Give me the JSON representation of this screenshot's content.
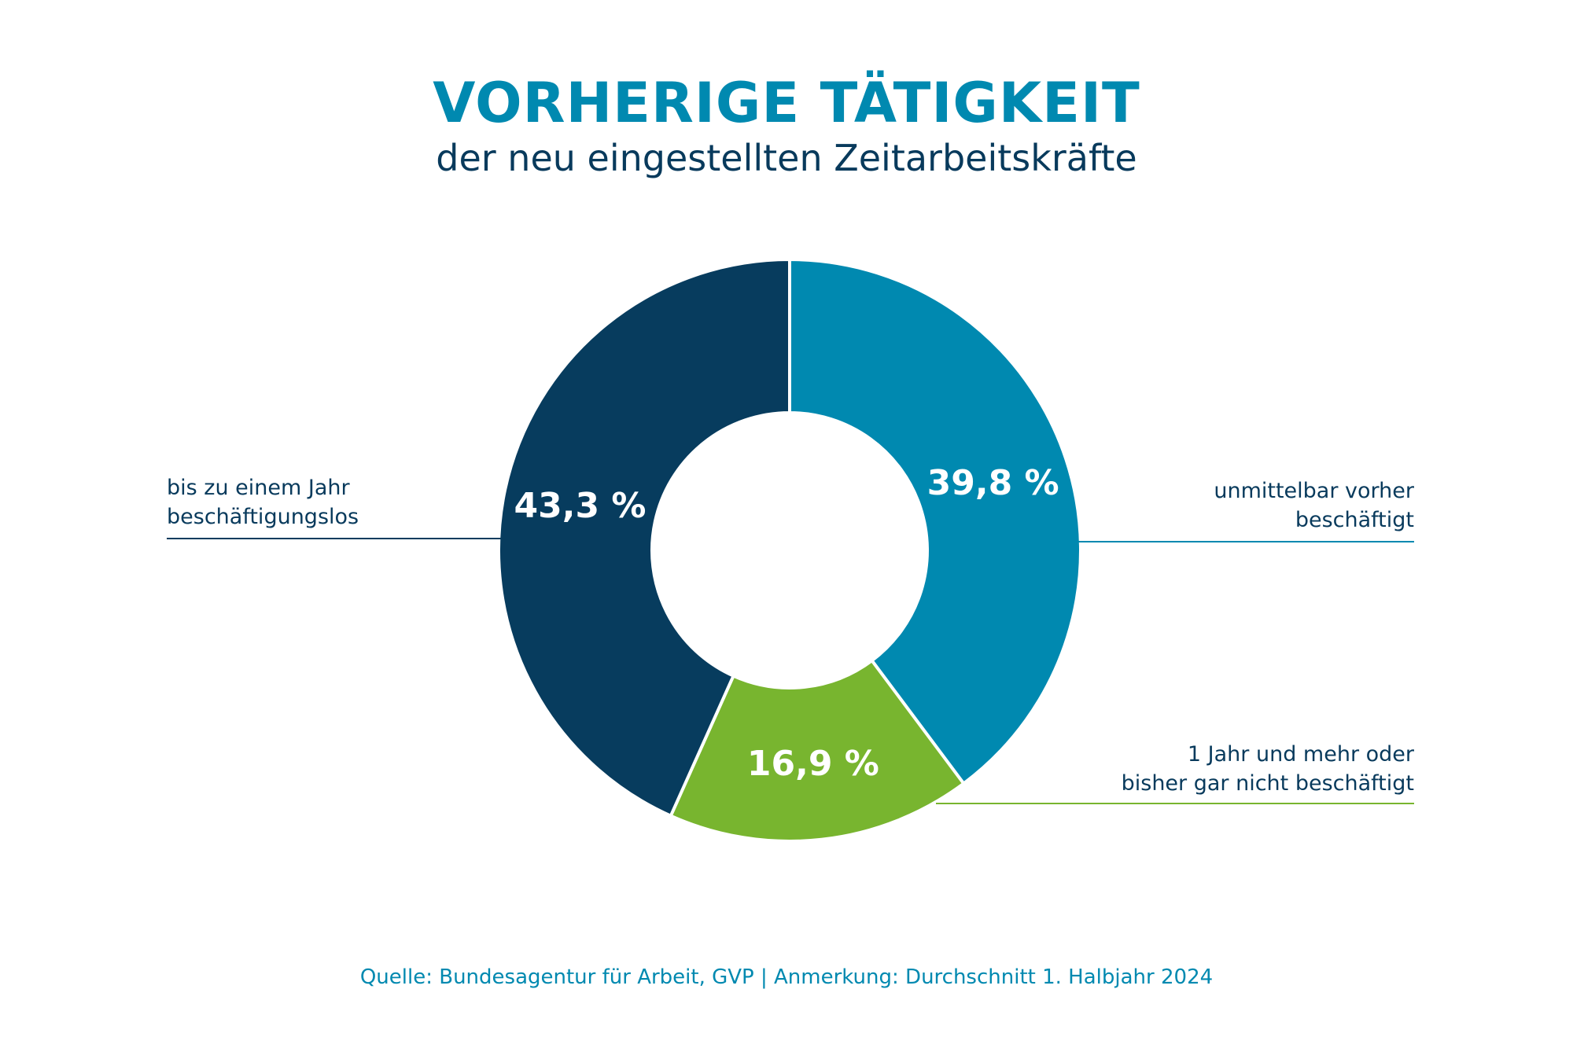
{
  "header": {
    "title": "VORHERIGE TÄTIGKEIT",
    "subtitle": "der neu eingestellten Zeitarbeitskräfte"
  },
  "footer": {
    "source": "Quelle: Bundesagentur für Arbeit, GVP | Anmerkung: Durchschnitt 1. Halbjahr 2024"
  },
  "colors": {
    "title": "#0089b0",
    "subtitle": "#083a5c",
    "footer": "#0089b0",
    "label_text": "#083a5c",
    "value_text": "#ffffff"
  },
  "chart_data": {
    "type": "pie",
    "donut": true,
    "start_angle_deg": 0,
    "direction": "clockwise",
    "slices": [
      {
        "label_lines": [
          "unmittelbar vorher",
          "beschäftigt"
        ],
        "value": 39.8,
        "value_label": "39,8 %",
        "color": "#0089b0",
        "label_side": "right"
      },
      {
        "label_lines": [
          "1 Jahr und mehr oder",
          "bisher gar nicht beschäftigt"
        ],
        "value": 16.9,
        "value_label": "16,9 %",
        "color": "#78b52f",
        "label_side": "right"
      },
      {
        "label_lines": [
          "bis zu einem Jahr",
          "beschäftigungslos"
        ],
        "value": 43.3,
        "value_label": "43,3 %",
        "color": "#073c5e",
        "label_side": "left"
      }
    ]
  }
}
